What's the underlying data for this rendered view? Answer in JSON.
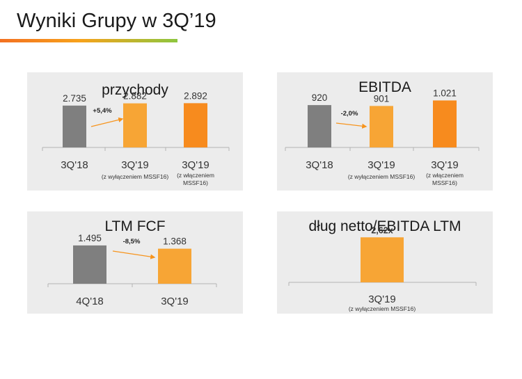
{
  "slide": {
    "title": "Wyniki Grupy w 3Q’19"
  },
  "chart_data": [
    {
      "type": "bar",
      "title": "przychody",
      "categories": [
        "3Q'18",
        "3Q'19",
        "3Q'19"
      ],
      "values": [
        2735,
        2882,
        2892
      ],
      "value_labels": [
        "2.735",
        "2.882",
        "2.892"
      ],
      "category_notes": [
        "",
        "(z wyłączeniem MSSF16)",
        "(z włączeniem MSSF16)"
      ],
      "colors": [
        "#7f7f7f",
        "#f7a535",
        "#f78b1e"
      ],
      "change_label": "+5,4%",
      "ylim": [
        0,
        4000
      ]
    },
    {
      "type": "bar",
      "title": "EBITDA",
      "categories": [
        "3Q'18",
        "3Q'19",
        "3Q'19"
      ],
      "values": [
        920,
        901,
        1021
      ],
      "value_labels": [
        "920",
        "901",
        "1.021"
      ],
      "category_notes": [
        "",
        "(z wyłączeniem MSSF16)",
        "(z włączeniem MSSF16)"
      ],
      "colors": [
        "#7f7f7f",
        "#f7a535",
        "#f78b1e"
      ],
      "change_label": "-2,0%",
      "ylim": [
        0,
        1330
      ]
    },
    {
      "type": "bar",
      "title": "LTM FCF",
      "categories": [
        "4Q'18",
        "3Q'19"
      ],
      "values": [
        1495,
        1368
      ],
      "value_labels": [
        "1.495",
        "1.368"
      ],
      "category_notes": [
        "",
        ""
      ],
      "colors": [
        "#7f7f7f",
        "#f7a535"
      ],
      "change_label": "-8,5%",
      "ylim": [
        0,
        1900
      ]
    },
    {
      "type": "bar",
      "title": "dług netto/EBITDA LTM",
      "categories": [
        "3Q'19"
      ],
      "values": [
        2.62
      ],
      "value_labels": [
        "2,62x"
      ],
      "category_notes": [
        "(z wyłączeniem MSSF16)"
      ],
      "colors": [
        "#f7a535"
      ],
      "change_label": "",
      "ylim": [
        0,
        3.4
      ]
    }
  ]
}
